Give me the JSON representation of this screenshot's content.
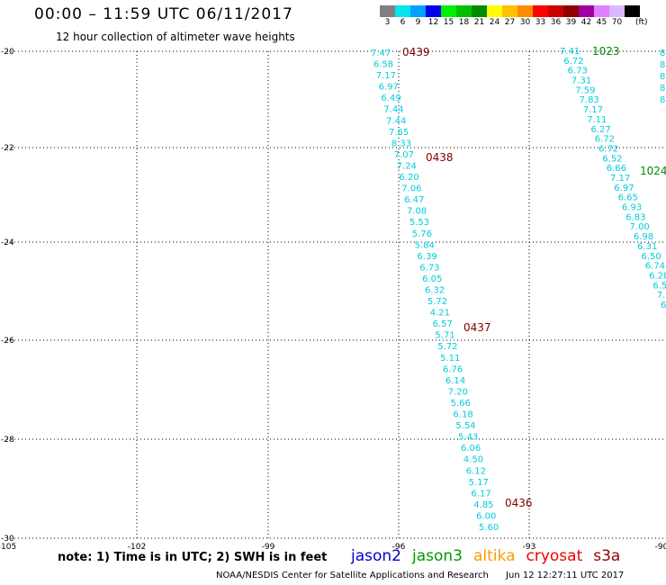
{
  "header": {
    "title": "00:00 – 11:59 UTC 06/11/2017",
    "subtitle": "12 hour collection of altimeter wave heights"
  },
  "colorbar": {
    "unit": "(ft)",
    "swatches": [
      {
        "label": "3",
        "color": "#808080"
      },
      {
        "label": "6",
        "color": "#00e5ee"
      },
      {
        "label": "9",
        "color": "#00a0ff"
      },
      {
        "label": "12",
        "color": "#0000ee"
      },
      {
        "label": "15",
        "color": "#00ee00"
      },
      {
        "label": "18",
        "color": "#00c000"
      },
      {
        "label": "21",
        "color": "#008c00"
      },
      {
        "label": "24",
        "color": "#ffff00"
      },
      {
        "label": "27",
        "color": "#ffc000"
      },
      {
        "label": "30",
        "color": "#ff8c00"
      },
      {
        "label": "33",
        "color": "#ff0000"
      },
      {
        "label": "36",
        "color": "#c80000"
      },
      {
        "label": "39",
        "color": "#900000"
      },
      {
        "label": "42",
        "color": "#a000a0"
      },
      {
        "label": "45",
        "color": "#e080ff"
      },
      {
        "label": "70",
        "color": "#d8b8ff"
      },
      {
        "label": "",
        "color": "#000000"
      }
    ]
  },
  "map_data": {
    "lon_ticks": [
      "-105",
      "-102",
      "-99",
      "-96",
      "-93",
      "-90"
    ],
    "lat_ticks": [
      "-20",
      "-22",
      "-24",
      "-26",
      "-28",
      "-30"
    ],
    "value_color": "#00ccdd",
    "time_color": "#800000",
    "time_color_alt": "#008c00",
    "track1": [
      "7.47",
      "6.58",
      "7.17",
      "6.97",
      "6.49",
      "7.44",
      "7.44",
      "7.65",
      "8.33",
      "7.07",
      "7.24",
      "6.20",
      "7.06",
      "6.47",
      "7.08",
      "5.53",
      "5.76",
      "5.84",
      "6.39",
      "6.73",
      "6.05",
      "6.32",
      "5.72",
      "4.21",
      "6.57",
      "5.71",
      "5.72",
      "5.11",
      "6.76",
      "6.14",
      "7.20",
      "5.66",
      "6.18",
      "5.54",
      "5.43",
      "6.06",
      "4.50",
      "6.12",
      "5.17",
      "6.17",
      "4.85",
      "6.00",
      "5.60"
    ],
    "track2": [
      "7.41",
      "6.72",
      "6.73",
      "7.31",
      "7.59",
      "7.83",
      "7.17",
      "7.11",
      "6.27",
      "6.72",
      "6.72",
      "6.52",
      "6.66",
      "7.17",
      "6.97",
      "6.65",
      "6.93",
      "6.83",
      "7.00",
      "6.98",
      "6.31",
      "6.50",
      "6.74",
      "6.28",
      "6.5",
      "7.",
      "6"
    ],
    "time_labels_track1": [
      "0439",
      "0438",
      "0437",
      "0436"
    ],
    "time_labels_track2": [
      "1023",
      "1024"
    ],
    "track3_partial": [
      "8.",
      "8",
      "8",
      "8",
      "8"
    ]
  },
  "note": "note: 1) Time is in UTC; 2) SWH is in feet",
  "legend": [
    {
      "name": "jason2",
      "color": "#0000cc"
    },
    {
      "name": "jason3",
      "color": "#009900"
    },
    {
      "name": "altika",
      "color": "#ff9900"
    },
    {
      "name": "cryosat",
      "color": "#ee0000"
    },
    {
      "name": "s3a",
      "color": "#990000"
    }
  ],
  "footer": {
    "credit": "NOAA/NESDIS Center for Satellite Applications and Research",
    "timestamp": "Jun 12 12:27:11 UTC 2017"
  }
}
